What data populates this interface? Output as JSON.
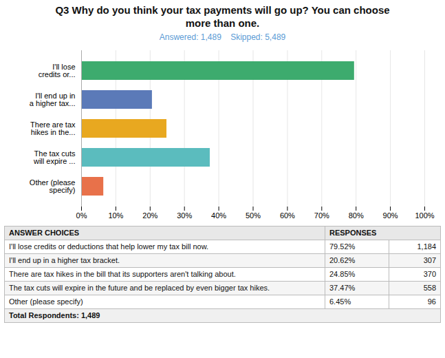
{
  "chart_data": {
    "type": "bar",
    "orientation": "horizontal",
    "title": "Q3 Why do you think your tax payments will go up? You can choose\nmore than one.",
    "subtitle": "Answered: 1,489    Skipped: 5,489",
    "categories": [
      "I'll lose\ncredits or...",
      "I'll end up in\na higher tax...",
      "There are tax\nhikes in the...",
      "The tax cuts\nwill expire ...",
      "Other (please\nspecify)"
    ],
    "values": [
      79.52,
      20.62,
      24.85,
      37.47,
      6.45
    ],
    "colors": [
      "#3dab6e",
      "#5b7ab8",
      "#e8a820",
      "#5bbcbe",
      "#e8714a"
    ],
    "xlim": [
      0,
      100
    ],
    "xticks": [
      {
        "value": 0,
        "label": "0%"
      },
      {
        "value": 10,
        "label": "10%"
      },
      {
        "value": 20,
        "label": "20%"
      },
      {
        "value": 30,
        "label": "30%"
      },
      {
        "value": 40,
        "label": "40%"
      },
      {
        "value": 50,
        "label": "50%"
      },
      {
        "value": 60,
        "label": "60%"
      },
      {
        "value": 70,
        "label": "70%"
      },
      {
        "value": 80,
        "label": "80%"
      },
      {
        "value": 90,
        "label": "90%"
      },
      {
        "value": 100,
        "label": "100%"
      }
    ],
    "grid": true,
    "table": {
      "header": [
        "ANSWER CHOICES",
        "RESPONSES"
      ],
      "rows": [
        [
          "I'll lose credits or deductions that help lower my tax bill now.",
          "79.52%",
          "1,184"
        ],
        [
          "I'll end up in a higher tax bracket.",
          "20.62%",
          "307"
        ],
        [
          "There are tax hikes in the bill that its supporters aren't talking about.",
          "24.85%",
          "370"
        ],
        [
          "The tax cuts will expire in the future and be replaced by even bigger tax hikes.",
          "37.47%",
          "558"
        ],
        [
          "Other (please specify)",
          "6.45%",
          "96"
        ],
        [
          "Total Respondents: 1,489"
        ]
      ]
    }
  }
}
